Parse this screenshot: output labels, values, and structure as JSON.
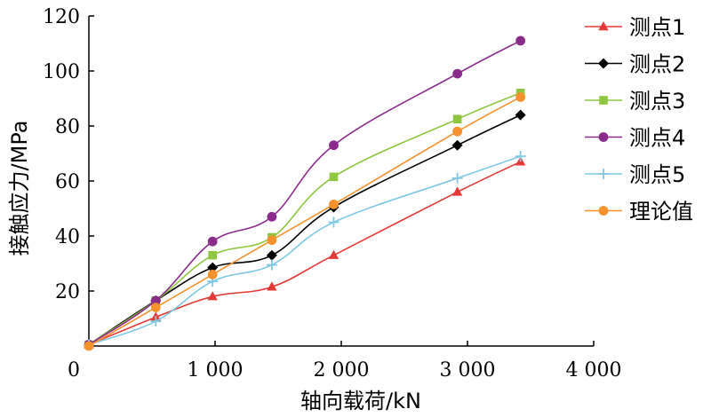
{
  "chart_data": {
    "type": "line",
    "xlabel": "轴向载荷/kN",
    "ylabel": "接触应力/MPa",
    "xlim": [
      0,
      4000
    ],
    "ylim": [
      0,
      120
    ],
    "xticks": [
      1000,
      2000,
      3000,
      4000
    ],
    "xtick_labels": [
      "1 000",
      "2 000",
      "3 000",
      "4 000"
    ],
    "yticks": [
      20,
      40,
      60,
      80,
      100,
      120
    ],
    "ytick_labels": [
      "20",
      "40",
      "60",
      "80",
      "100",
      "120"
    ],
    "origin_label": "0",
    "grid": false,
    "legend_position": "right",
    "x": [
      0,
      530,
      980,
      1450,
      1940,
      2920,
      3420
    ],
    "series": [
      {
        "name": "测点1",
        "color": "#e53935",
        "marker": "triangle",
        "values": [
          0.5,
          10.5,
          18,
          21.5,
          33,
          56,
          67
        ]
      },
      {
        "name": "测点2",
        "color": "#000000",
        "marker": "diamond",
        "values": [
          0.5,
          16.5,
          28.5,
          33,
          50.5,
          73,
          84
        ]
      },
      {
        "name": "测点3",
        "color": "#8dc63f",
        "marker": "square",
        "values": [
          0.5,
          16.5,
          33,
          39.5,
          61.5,
          82.5,
          92
        ]
      },
      {
        "name": "测点4",
        "color": "#8b2c8c",
        "marker": "circle",
        "values": [
          0.5,
          16.5,
          38,
          47,
          73,
          99,
          111
        ]
      },
      {
        "name": "测点5",
        "color": "#7ec8e3",
        "marker": "plus",
        "values": [
          0.5,
          9,
          23.5,
          29.5,
          45,
          61,
          69
        ]
      },
      {
        "name": "理论值",
        "color": "#f5922e",
        "marker": "circle",
        "values": [
          0,
          14,
          26,
          38.5,
          51.5,
          78,
          90.5
        ]
      }
    ]
  }
}
